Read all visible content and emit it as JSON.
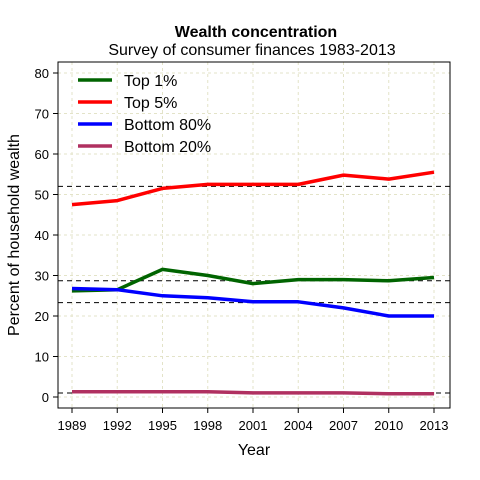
{
  "chart_data": {
    "type": "line",
    "title": "Wealth concentration",
    "subtitle": "Survey of consumer finances 1983-2013",
    "xlabel": "Year",
    "ylabel": "Percent of household wealth",
    "x": [
      1989,
      1992,
      1995,
      1998,
      2001,
      2004,
      2007,
      2010,
      2013
    ],
    "xlim": [
      1989,
      2013
    ],
    "ylim": [
      0,
      80
    ],
    "xticks": [
      "1989",
      "1992",
      "1995",
      "1998",
      "2001",
      "2004",
      "2007",
      "2010",
      "2013"
    ],
    "yticks": [
      "0",
      "10",
      "20",
      "30",
      "40",
      "50",
      "60",
      "70",
      "80"
    ],
    "grid": true,
    "legend_position": "top-left",
    "series": [
      {
        "name": "Top 1%",
        "color": "#006400",
        "values": [
          26.2,
          26.5,
          31.5,
          30.0,
          28.0,
          29.0,
          29.0,
          28.7,
          29.5
        ]
      },
      {
        "name": "Top 5%",
        "color": "#ff0000",
        "values": [
          47.5,
          48.5,
          51.5,
          52.5,
          52.5,
          52.5,
          54.8,
          53.8,
          55.5
        ]
      },
      {
        "name": "Bottom 80%",
        "color": "#0000ff",
        "values": [
          26.8,
          26.5,
          25.0,
          24.5,
          23.5,
          23.5,
          22.0,
          20.0,
          20.0
        ]
      },
      {
        "name": "Bottom 20%",
        "color": "#b03060",
        "values": [
          1.3,
          1.3,
          1.3,
          1.3,
          1.0,
          1.0,
          1.0,
          0.8,
          0.8
        ]
      }
    ],
    "reference_lines": [
      52.0,
      28.7,
      23.3,
      1.0
    ]
  }
}
